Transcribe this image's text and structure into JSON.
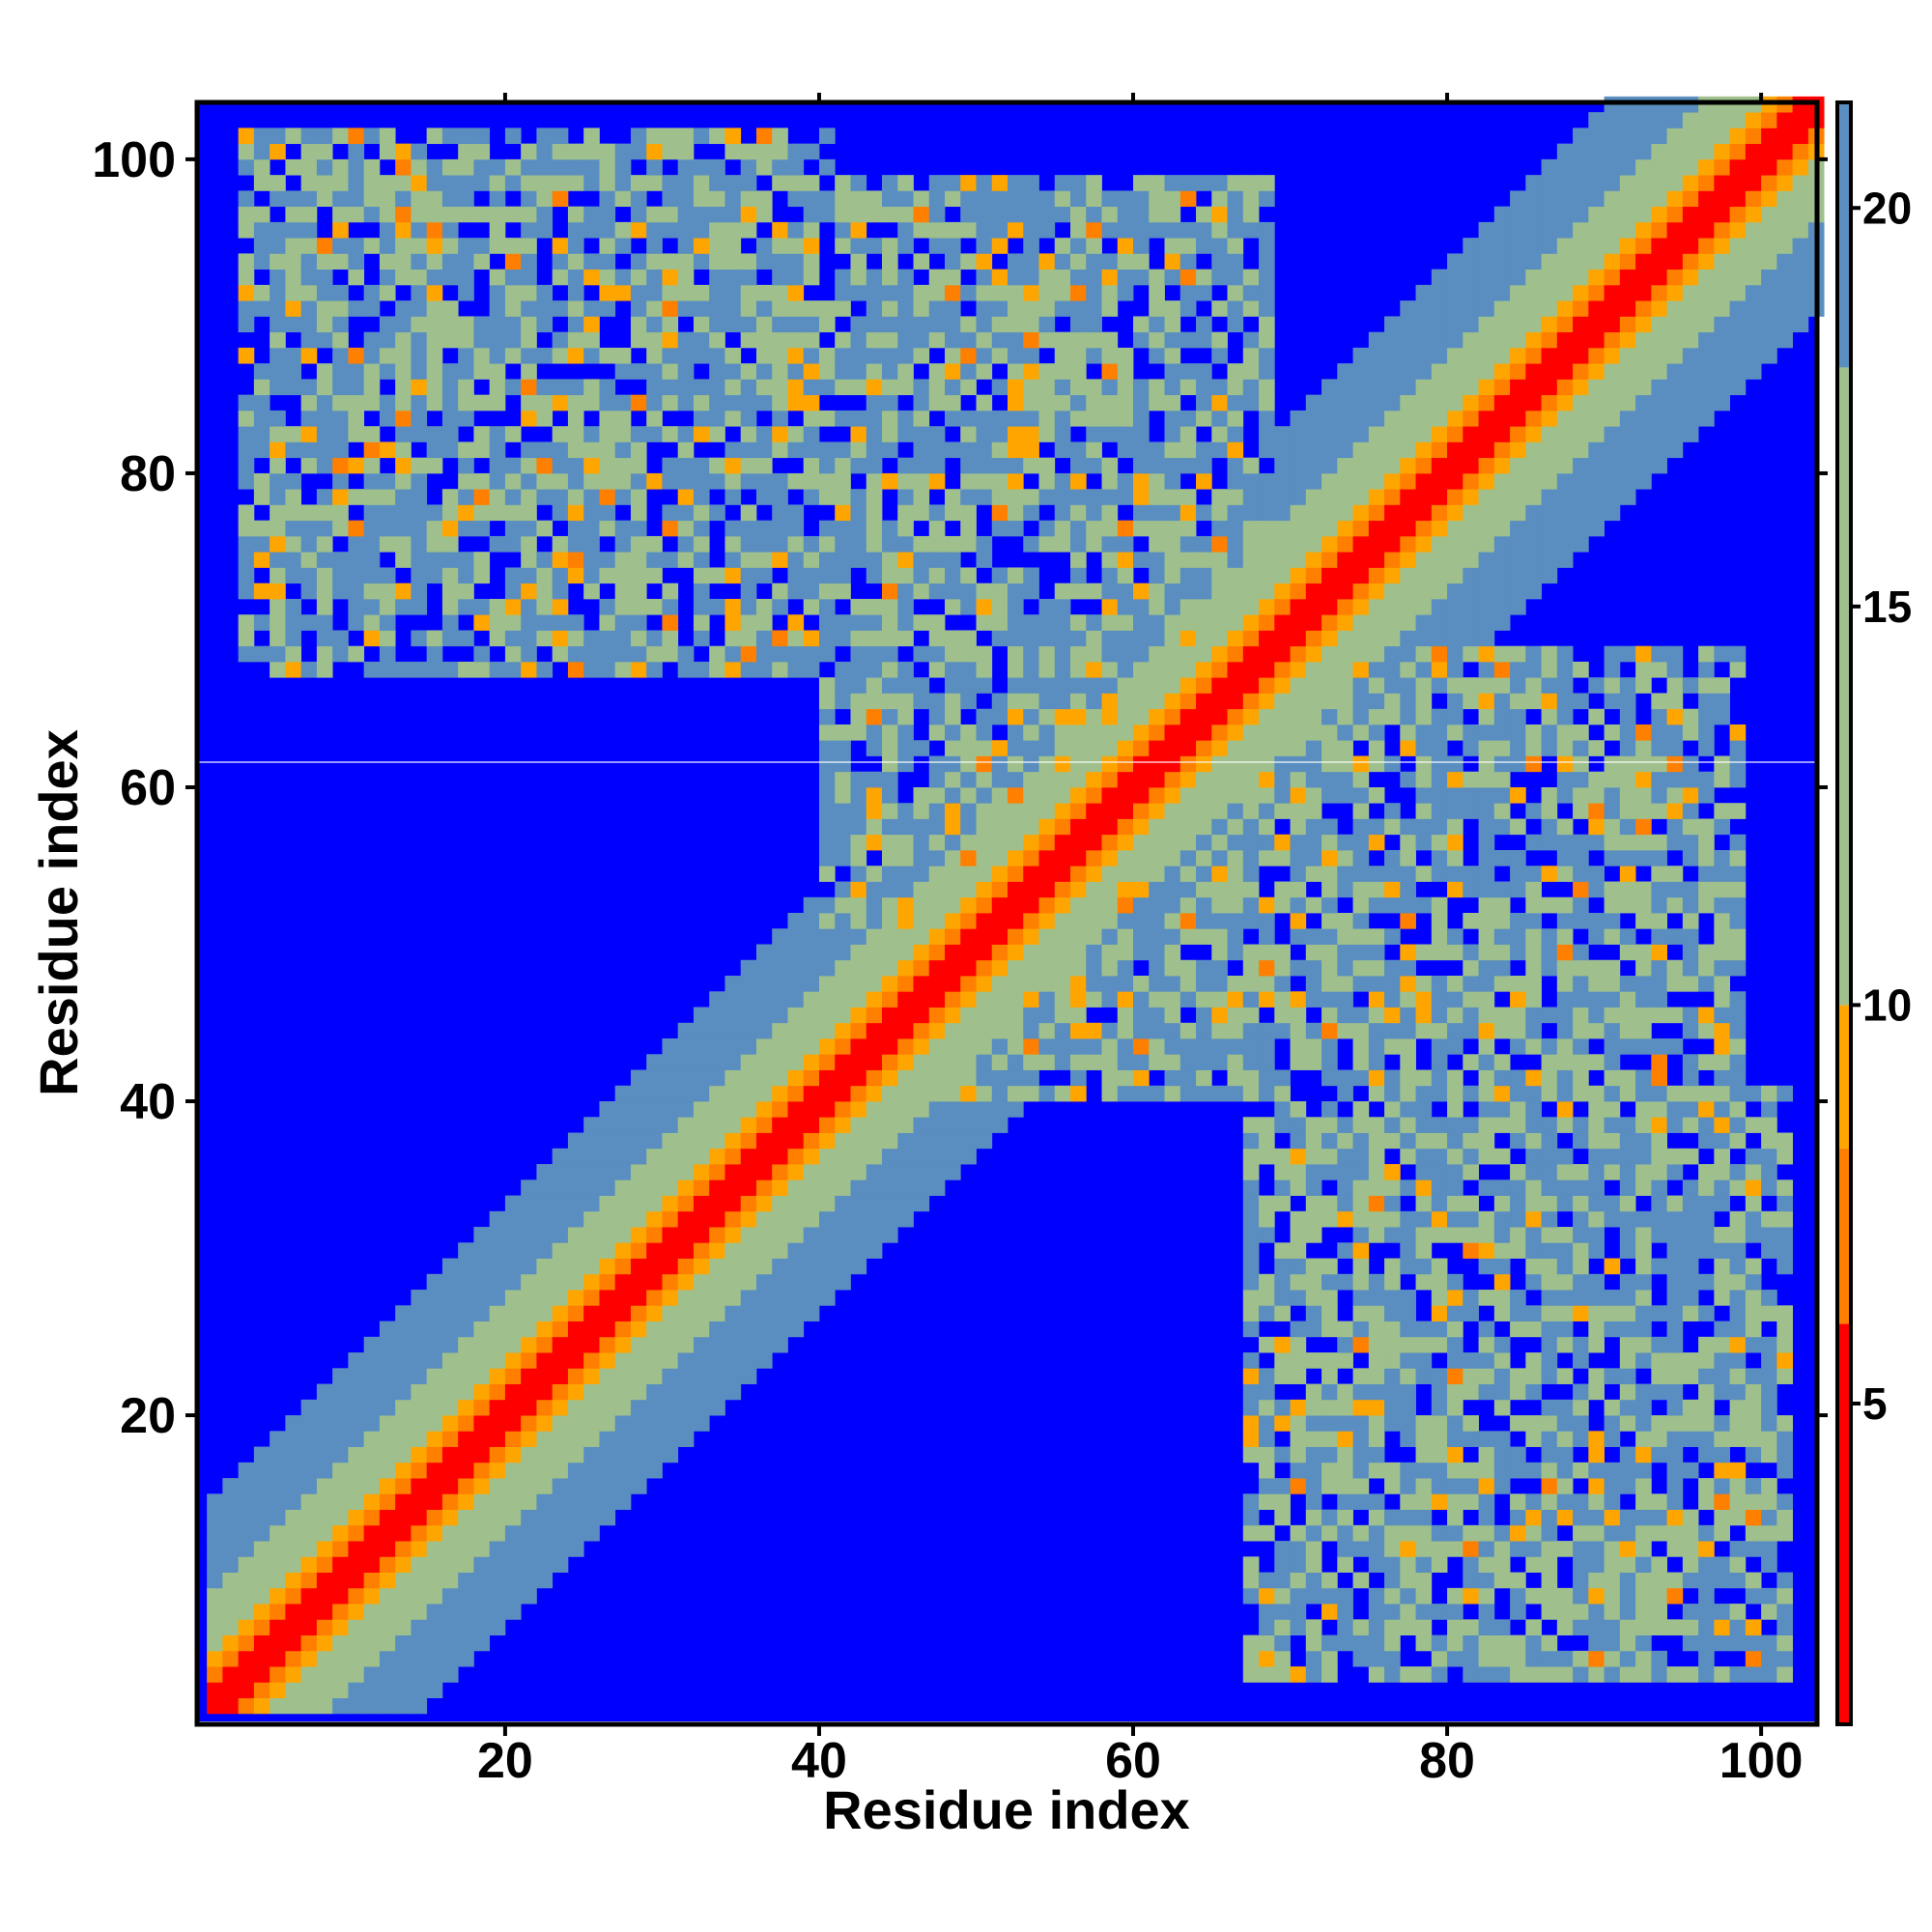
{
  "chart_data": {
    "type": "heatmap",
    "title": "",
    "xlabel": "Residue index",
    "ylabel": "Residue index",
    "n_residues": 103,
    "xlim": [
      1,
      103
    ],
    "ylim": [
      1,
      103
    ],
    "xticks": [
      20,
      40,
      60,
      80,
      100
    ],
    "yticks": [
      20,
      40,
      60,
      80,
      100
    ],
    "colorbar": {
      "range": [
        1,
        21.3
      ],
      "ticks": [
        5,
        10,
        15,
        20
      ],
      "colors": [
        "#ff0000",
        "#ff7f00",
        "#ffa500",
        "#9fc08c",
        "#5a8ec0",
        "#0000ff"
      ],
      "stops": [
        1,
        6,
        8.2,
        10,
        18,
        21.3
      ]
    },
    "colors": {
      "diagonal": "#ff0000",
      "close": "#ff7f00",
      "near": "#ffa500",
      "mid": "#9fc08c",
      "far": "#5a8ec0",
      "background": "#0000ff"
    },
    "contact_regions": [
      {
        "x": [
          3,
          40
        ],
        "y": [
          67,
          101
        ]
      },
      {
        "x": [
          67,
          101
        ],
        "y": [
          3,
          40
        ]
      },
      {
        "x": [
          40,
          68
        ],
        "y": [
          40,
          98
        ]
      },
      {
        "x": [
          40,
          98
        ],
        "y": [
          40,
          68
        ]
      }
    ],
    "grid": false,
    "legend": "colorbar-right"
  }
}
